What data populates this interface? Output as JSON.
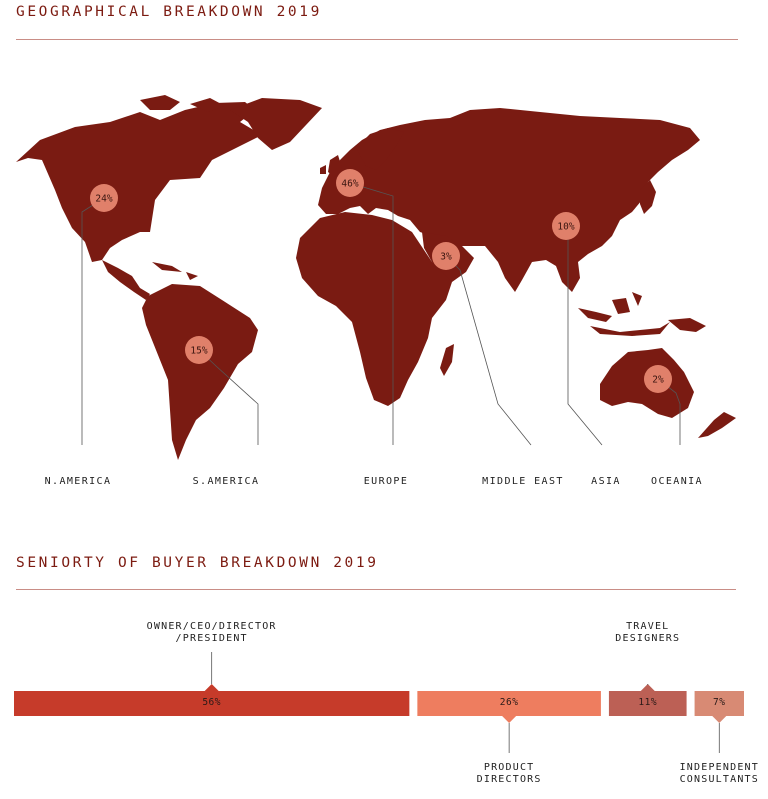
{
  "map_section": {
    "title": "GEOGRAPHICAL BREAKDOWN 2019",
    "map_color": "#7a1b12",
    "bubble_color": "#e0806a"
  },
  "seniority_section": {
    "title": "SENIORTY OF BUYER BREAKDOWN 2019"
  },
  "chart_data": [
    {
      "type": "map",
      "title": "GEOGRAPHICAL BREAKDOWN 2019",
      "regions": [
        {
          "name": "N.AMERICA",
          "value": 24,
          "label": "24%"
        },
        {
          "name": "S.AMERICA",
          "value": 15,
          "label": "15%"
        },
        {
          "name": "EUROPE",
          "value": 46,
          "label": "46%"
        },
        {
          "name": "MIDDLE EAST",
          "value": 3,
          "label": "3%"
        },
        {
          "name": "ASIA",
          "value": 10,
          "label": "10%"
        },
        {
          "name": "OCEANIA",
          "value": 2,
          "label": "2%"
        }
      ]
    },
    {
      "type": "bar",
      "orientation": "horizontal-stacked",
      "title": "SENIORTY OF BUYER BREAKDOWN 2019",
      "segments": [
        {
          "name": "OWNER/CEO/DIRECTOR /PRESIDENT",
          "lines": [
            "OWNER/CEO/DIRECTOR",
            "/PRESIDENT"
          ],
          "value": 56,
          "label": "56%",
          "color": "#c63b2a",
          "label_position": "above"
        },
        {
          "name": "PRODUCT DIRECTORS",
          "lines": [
            "PRODUCT",
            "DIRECTORS"
          ],
          "value": 26,
          "label": "26%",
          "color": "#ee7d5f",
          "label_position": "below"
        },
        {
          "name": "TRAVEL DESIGNERS",
          "lines": [
            "TRAVEL",
            "DESIGNERS"
          ],
          "value": 11,
          "label": "11%",
          "color": "#bc6055",
          "label_position": "above"
        },
        {
          "name": "INDEPENDENT CONSULTANTS",
          "lines": [
            "INDEPENDENT",
            "CONSULTANTS"
          ],
          "value": 7,
          "label": "7%",
          "color": "#d88a74",
          "label_position": "below"
        }
      ]
    }
  ]
}
